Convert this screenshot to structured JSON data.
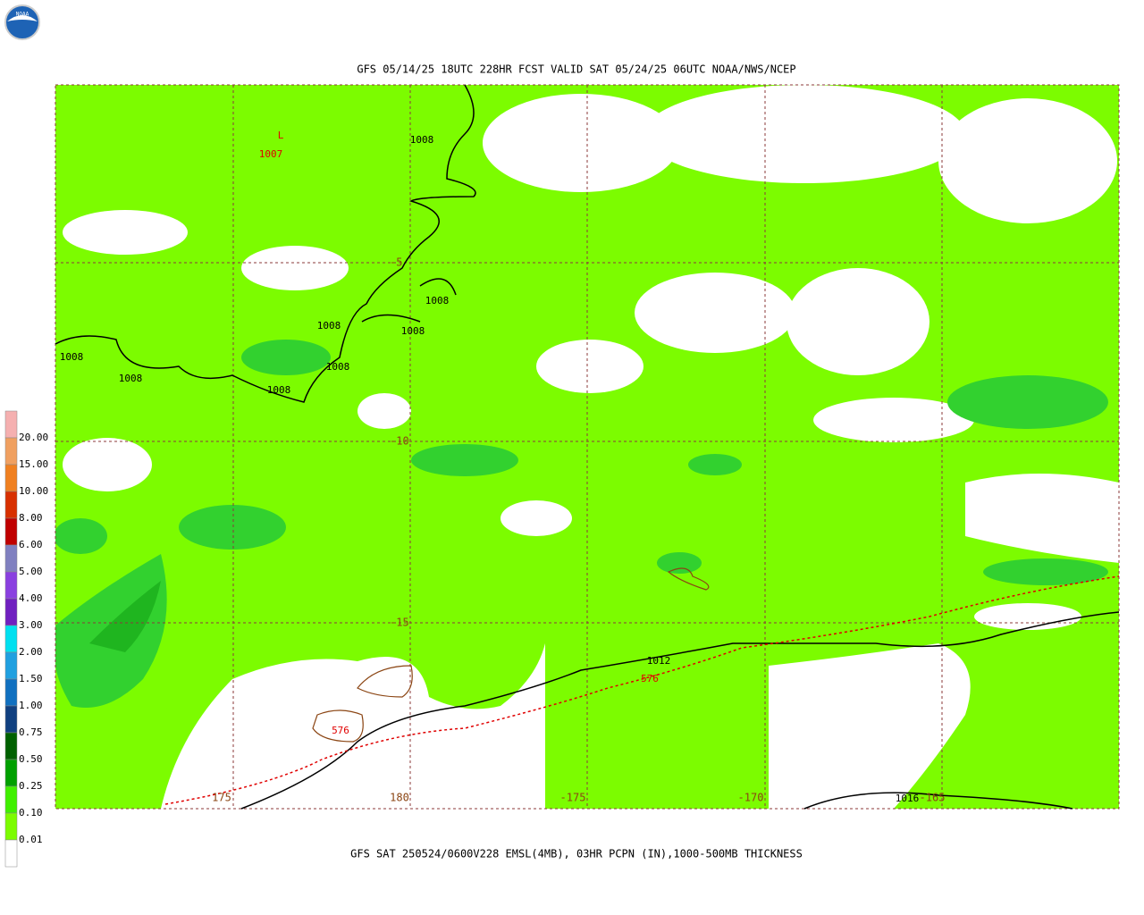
{
  "header": {
    "logo_text": "NOAA",
    "title": "GFS 05/14/25 18UTC 228HR FCST VALID SAT 05/24/25 06UTC NOAA/NWS/NCEP",
    "caption": "GFS SAT 250524/0600V228 EMSL(4MB), 03HR PCPN (IN),1000-500MB THICKNESS"
  },
  "legend": {
    "labels": [
      "20.00",
      "15.00",
      "10.00",
      "8.00",
      "6.00",
      "5.00",
      "4.00",
      "3.00",
      "2.00",
      "1.50",
      "1.00",
      "0.75",
      "0.50",
      "0.25",
      "0.10",
      "0.01"
    ]
  },
  "grid": {
    "lat_labels": [
      "-5",
      "-10",
      "-15"
    ],
    "lon_labels": [
      "175",
      "180",
      "-175",
      "-170",
      "-165"
    ]
  },
  "contours": {
    "labels": [
      "L",
      "1007",
      "1008",
      "1008",
      "1008",
      "1008",
      "1008",
      "1008",
      "1008",
      "1008",
      "1012",
      "576",
      "576",
      "1016"
    ]
  }
}
